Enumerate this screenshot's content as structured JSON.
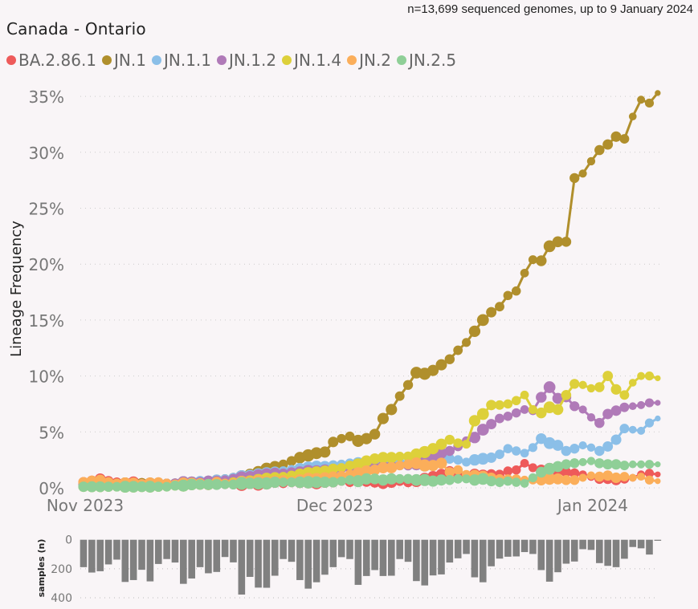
{
  "header": {
    "subtitle": "n=13,699 sequenced genomes, up to 9 January 2024",
    "title": "Canada - Ontario"
  },
  "chart_data": [
    {
      "type": "line",
      "title": "Canada - Ontario",
      "ylabel": "Lineage Frequency",
      "xlabel": "",
      "x_start": "2023-11-01",
      "x_end": "2024-01-09",
      "x_ticks": [
        "Nov 2023",
        "Dec 2023",
        "Jan 2024"
      ],
      "x_tick_day_index": [
        0,
        30,
        61
      ],
      "y_ticks": [
        "0%",
        "5%",
        "10%",
        "15%",
        "20%",
        "25%",
        "30%",
        "35%"
      ],
      "ylim": [
        0,
        35
      ],
      "grid": true,
      "legend_position": "top",
      "series": [
        {
          "name": "BA.2.86.1",
          "color": "#EE5A5A",
          "values": [
            0.5,
            0.6,
            0.8,
            0.6,
            0.5,
            0.4,
            0.5,
            0.4,
            0.4,
            0.3,
            0.4,
            0.3,
            0.4,
            0.4,
            0.3,
            0.3,
            0.4,
            0.3,
            0.4,
            0.3,
            0.4,
            0.3,
            0.4,
            0.5,
            0.4,
            0.5,
            0.5,
            0.5,
            0.4,
            0.5,
            0.5,
            0.6,
            0.5,
            0.7,
            0.6,
            0.5,
            0.4,
            0.5,
            0.6,
            0.5,
            0.6,
            0.8,
            1.0,
            1.2,
            1.5,
            1.1,
            1.0,
            1.2,
            1.1,
            1.2,
            1.2,
            1.5,
            1.6,
            2.2,
            1.8,
            1.6,
            1.7,
            1.5,
            1.4,
            1.3,
            1.2,
            1.0,
            0.8,
            0.8,
            0.7,
            0.8,
            0.9,
            1.2,
            1.3,
            1.2
          ]
        },
        {
          "name": "JN.1",
          "color": "#B08F2C",
          "values": [
            0.3,
            0.3,
            0.4,
            0.3,
            0.4,
            0.4,
            0.3,
            0.4,
            0.4,
            0.4,
            0.4,
            0.4,
            0.5,
            0.5,
            0.5,
            0.6,
            0.7,
            0.8,
            0.9,
            1.0,
            1.2,
            1.4,
            1.7,
            1.9,
            2.1,
            2.4,
            2.7,
            2.9,
            3.1,
            3.2,
            4.1,
            4.4,
            4.6,
            4.2,
            4.4,
            4.8,
            6.2,
            7.0,
            8.2,
            9.2,
            10.3,
            10.2,
            10.5,
            11.0,
            11.5,
            12.3,
            13.0,
            14.0,
            15.0,
            15.7,
            16.2,
            17.2,
            17.6,
            19.2,
            20.4,
            20.3,
            21.6,
            22.0,
            22.0,
            27.7,
            28.1,
            29.2,
            30.2,
            30.7,
            31.4,
            31.2,
            33.2,
            34.7,
            34.4,
            35.3
          ]
        },
        {
          "name": "JN.1.1",
          "color": "#8BBFE8",
          "values": [
            0.2,
            0.2,
            0.3,
            0.3,
            0.2,
            0.3,
            0.3,
            0.3,
            0.3,
            0.3,
            0.4,
            0.4,
            0.5,
            0.5,
            0.6,
            0.6,
            0.7,
            0.8,
            0.9,
            1.0,
            1.1,
            1.2,
            1.3,
            1.4,
            1.5,
            1.6,
            1.7,
            1.8,
            1.9,
            1.9,
            2.0,
            2.1,
            2.2,
            2.2,
            2.3,
            2.2,
            2.3,
            2.2,
            2.3,
            2.2,
            2.1,
            2.0,
            2.1,
            2.3,
            2.6,
            2.5,
            2.3,
            2.5,
            2.6,
            2.7,
            3.0,
            3.5,
            3.3,
            3.1,
            3.6,
            4.4,
            4.0,
            3.8,
            3.3,
            3.5,
            3.8,
            3.6,
            3.3,
            3.7,
            4.3,
            5.3,
            5.2,
            5.1,
            5.8,
            6.2
          ]
        },
        {
          "name": "JN.1.2",
          "color": "#B07AB8",
          "values": [
            0.3,
            0.3,
            0.3,
            0.4,
            0.3,
            0.3,
            0.3,
            0.3,
            0.3,
            0.3,
            0.4,
            0.4,
            0.5,
            0.5,
            0.5,
            0.6,
            0.6,
            0.7,
            0.8,
            0.9,
            1.0,
            1.1,
            1.2,
            1.3,
            1.3,
            1.4,
            1.4,
            1.5,
            1.5,
            1.6,
            1.6,
            1.7,
            1.7,
            1.8,
            1.8,
            1.8,
            1.9,
            1.9,
            2.0,
            2.0,
            2.1,
            2.3,
            2.7,
            3.1,
            3.3,
            3.7,
            4.2,
            4.5,
            5.2,
            5.7,
            6.2,
            6.4,
            6.7,
            7.0,
            6.9,
            8.1,
            9.0,
            8.0,
            8.1,
            7.3,
            7.0,
            6.3,
            5.8,
            6.6,
            6.9,
            7.2,
            7.3,
            7.4,
            7.6,
            7.6
          ]
        },
        {
          "name": "JN.1.4",
          "color": "#DDD03A",
          "values": [
            0.1,
            0.1,
            0.1,
            0.1,
            0.1,
            0.1,
            0.1,
            0.1,
            0.1,
            0.1,
            0.1,
            0.2,
            0.2,
            0.3,
            0.3,
            0.3,
            0.4,
            0.4,
            0.5,
            0.5,
            0.6,
            0.7,
            0.8,
            0.9,
            1.0,
            1.1,
            1.2,
            1.3,
            1.4,
            1.5,
            1.7,
            1.8,
            2.0,
            2.1,
            2.4,
            2.6,
            2.7,
            2.7,
            2.8,
            2.8,
            3.0,
            3.2,
            3.5,
            3.9,
            4.3,
            4.0,
            3.9,
            6.0,
            6.6,
            7.4,
            7.4,
            7.5,
            7.8,
            8.3,
            7.0,
            6.7,
            7.2,
            7.0,
            8.3,
            9.3,
            9.2,
            8.9,
            9.0,
            10.0,
            8.8,
            8.3,
            9.4,
            10.0,
            10.0,
            9.8
          ]
        },
        {
          "name": "JN.2",
          "color": "#FBAE5A",
          "values": [
            0.5,
            0.6,
            0.7,
            0.5,
            0.4,
            0.4,
            0.4,
            0.3,
            0.4,
            0.5,
            0.4,
            0.3,
            0.4,
            0.4,
            0.4,
            0.3,
            0.5,
            0.4,
            0.4,
            0.5,
            0.5,
            0.6,
            0.5,
            0.6,
            0.7,
            0.6,
            0.7,
            0.8,
            0.8,
            0.9,
            1.0,
            1.1,
            1.2,
            1.3,
            1.5,
            1.6,
            1.8,
            1.8,
            2.0,
            2.1,
            2.2,
            2.0,
            2.0,
            2.2,
            1.4,
            1.6,
            1.2,
            1.1,
            1.0,
            0.9,
            0.8,
            0.8,
            0.8,
            0.7,
            0.7,
            0.7,
            0.8,
            0.8,
            0.7,
            0.7,
            0.9,
            1.1,
            1.0,
            1.1,
            0.9,
            1.0,
            0.9,
            1.0,
            0.7,
            0.6
          ]
        },
        {
          "name": "JN.2.5",
          "color": "#8FCF97",
          "values": [
            0.1,
            0.1,
            0.1,
            0.1,
            0.1,
            0.1,
            0.1,
            0.1,
            0.1,
            0.1,
            0.1,
            0.2,
            0.2,
            0.3,
            0.3,
            0.3,
            0.3,
            0.3,
            0.3,
            0.4,
            0.4,
            0.4,
            0.4,
            0.5,
            0.5,
            0.5,
            0.5,
            0.5,
            0.5,
            0.5,
            0.5,
            0.6,
            0.7,
            0.6,
            0.8,
            0.8,
            0.7,
            0.8,
            0.8,
            0.8,
            0.7,
            0.7,
            0.6,
            0.7,
            0.7,
            0.8,
            0.8,
            0.7,
            0.8,
            0.6,
            0.5,
            0.6,
            0.5,
            0.4,
            0.9,
            1.4,
            1.7,
            1.9,
            2.1,
            2.2,
            2.3,
            2.4,
            2.2,
            2.1,
            2.1,
            2.0,
            2.1,
            2.1,
            2.1,
            2.1
          ]
        }
      ]
    },
    {
      "type": "bar",
      "ylabel": "samples (n)",
      "orientation": "downward",
      "y_ticks": [
        "0",
        "200",
        "400"
      ],
      "ylim": [
        0,
        400
      ],
      "values": [
        189,
        226,
        217,
        170,
        137,
        291,
        278,
        207,
        287,
        167,
        133,
        157,
        304,
        267,
        189,
        231,
        222,
        119,
        156,
        378,
        256,
        330,
        331,
        248,
        133,
        152,
        278,
        337,
        293,
        241,
        189,
        120,
        133,
        311,
        250,
        209,
        250,
        248,
        133,
        152,
        285,
        315,
        246,
        239,
        157,
        128,
        98,
        259,
        293,
        183,
        130,
        117,
        115,
        85,
        98,
        209,
        289,
        224,
        165,
        150,
        65,
        70,
        161,
        180,
        189,
        131,
        50,
        59,
        102,
        7
      ]
    }
  ]
}
